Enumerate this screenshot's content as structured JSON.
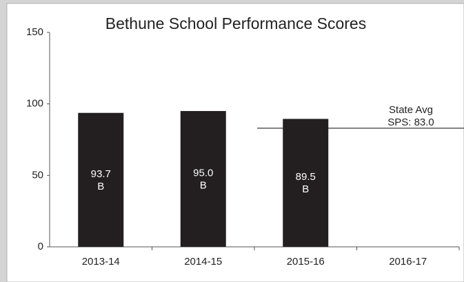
{
  "chart_data": {
    "type": "bar",
    "title": "Bethune School Performance Scores",
    "categories": [
      "2013-14",
      "2014-15",
      "2015-16",
      "2016-17"
    ],
    "values": [
      93.7,
      95.0,
      89.5,
      null
    ],
    "value_labels": [
      "93.7",
      "95.0",
      "89.5",
      null
    ],
    "grades": [
      "B",
      "B",
      "B",
      null
    ],
    "color": "#231f20",
    "ylim": [
      0,
      150
    ],
    "yticks": [
      0,
      50,
      100,
      150
    ],
    "grid": false,
    "reference": {
      "value": 83.0,
      "labels": [
        "State Avg",
        "SPS: 83.0"
      ]
    }
  }
}
